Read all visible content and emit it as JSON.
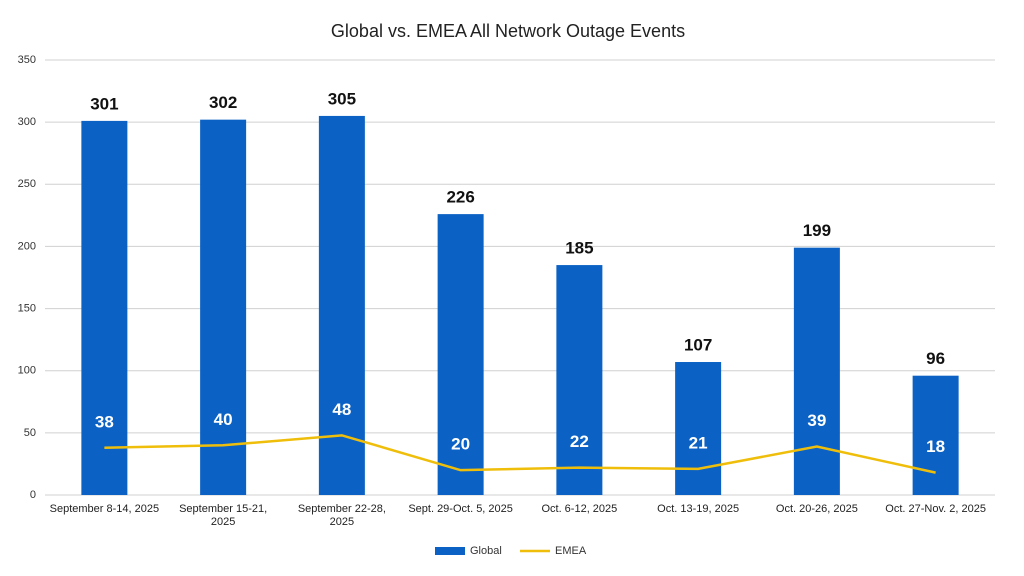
{
  "chart_data": {
    "type": "bar",
    "title": "Global vs. EMEA All Network Outage Events",
    "categories": [
      "September 8-14, 2025",
      "September 15-21, 2025",
      "September 22-28, 2025",
      "Sept. 29-Oct. 5, 2025",
      "Oct. 6-12, 2025",
      "Oct. 13-19, 2025",
      "Oct. 20-26, 2025",
      "Oct. 27-Nov. 2, 2025"
    ],
    "series": [
      {
        "name": "Global",
        "type": "bar",
        "color": "#0b62c4",
        "values": [
          301,
          302,
          305,
          226,
          185,
          107,
          199,
          96
        ]
      },
      {
        "name": "EMEA",
        "type": "line",
        "color": "#efbe0a",
        "values": [
          38,
          40,
          48,
          20,
          22,
          21,
          39,
          18
        ]
      }
    ],
    "ylim": [
      0,
      350
    ],
    "yticks": [
      0,
      50,
      100,
      150,
      200,
      250,
      300,
      350
    ],
    "grid": true,
    "legend": "bottom"
  }
}
